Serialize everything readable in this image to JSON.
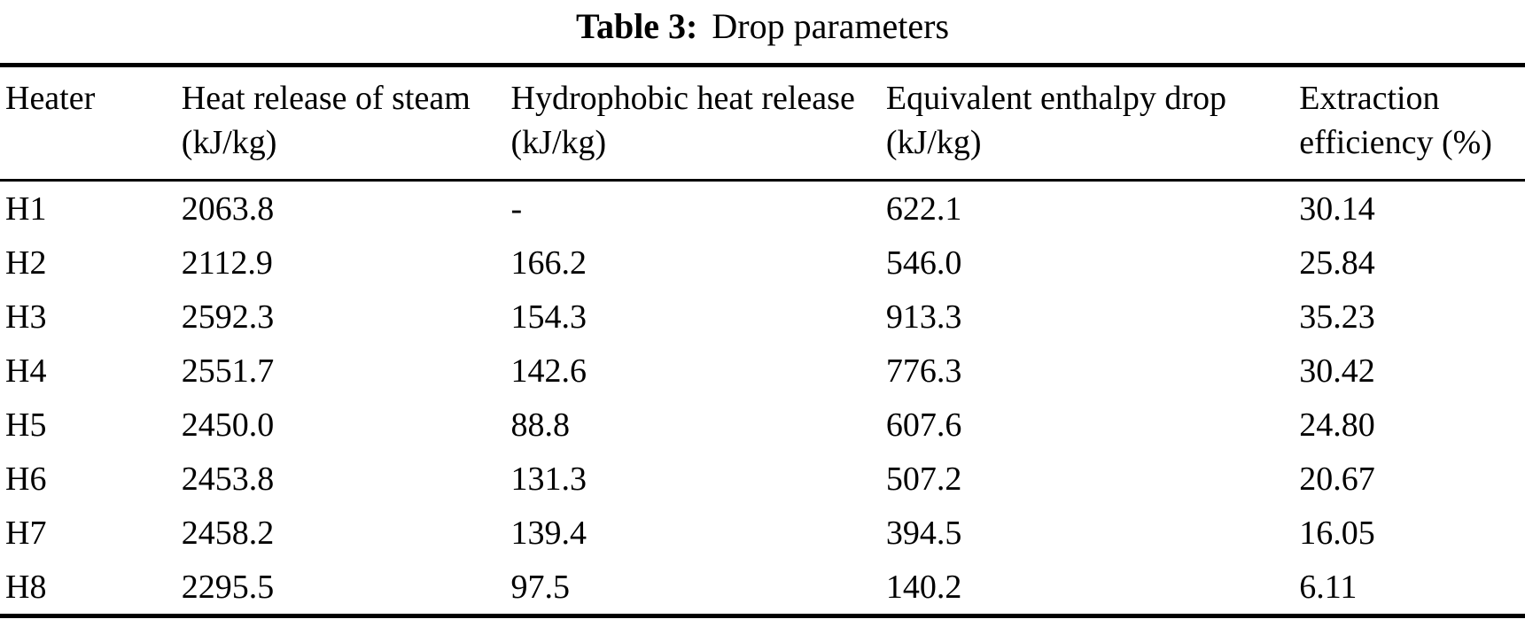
{
  "caption": {
    "label": "Table 3:",
    "text": "Drop parameters"
  },
  "table": {
    "columns": [
      "Heater",
      "Heat release of steam (kJ/kg)",
      "Hydrophobic heat release (kJ/kg)",
      "Equivalent enthalpy drop (kJ/kg)",
      "Extraction efficiency (%)"
    ],
    "rows": [
      [
        "H1",
        "2063.8",
        "-",
        "622.1",
        "30.14"
      ],
      [
        "H2",
        "2112.9",
        "166.2",
        "546.0",
        "25.84"
      ],
      [
        "H3",
        "2592.3",
        "154.3",
        "913.3",
        "35.23"
      ],
      [
        "H4",
        "2551.7",
        "142.6",
        "776.3",
        "30.42"
      ],
      [
        "H5",
        "2450.0",
        "88.8",
        "607.6",
        "24.80"
      ],
      [
        "H6",
        "2453.8",
        "131.3",
        "507.2",
        "20.67"
      ],
      [
        "H7",
        "2458.2",
        "139.4",
        "394.5",
        "16.05"
      ],
      [
        "H8",
        "2295.5",
        "97.5",
        "140.2",
        "6.11"
      ]
    ]
  }
}
